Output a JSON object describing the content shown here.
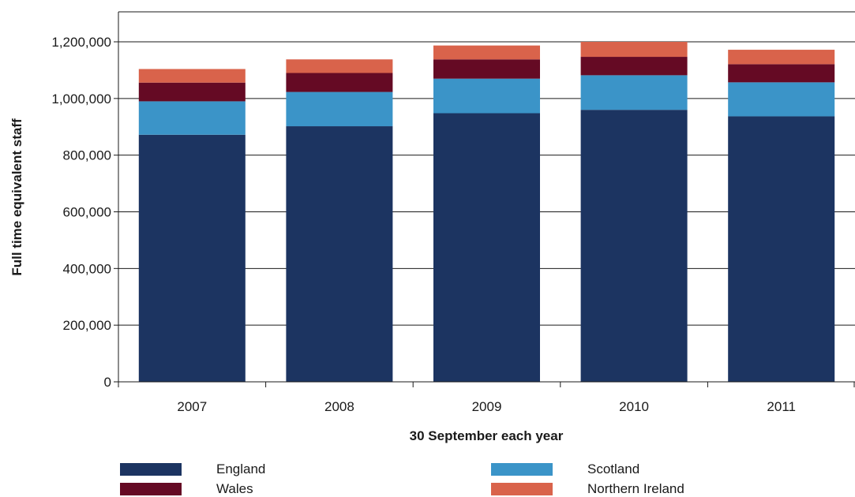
{
  "chart_data": {
    "type": "bar",
    "stacked": true,
    "title": "",
    "xlabel": "30 September each year",
    "ylabel": "Full time equivalent staff",
    "categories": [
      "2007",
      "2008",
      "2009",
      "2010",
      "2011"
    ],
    "ylim": [
      0,
      1200000
    ],
    "yticks": [
      "0",
      "200,000",
      "400,000",
      "600,000",
      "800,000",
      "1,000,000",
      "1,200,000"
    ],
    "ytick_values": [
      0,
      200000,
      400000,
      600000,
      800000,
      1000000,
      1200000
    ],
    "grid": true,
    "legend_position": "bottom",
    "series": [
      {
        "name": "England",
        "color": "#1c3461",
        "values": [
          872000,
          902000,
          948000,
          960000,
          937000
        ]
      },
      {
        "name": "Scotland",
        "color": "#3b94c8",
        "values": [
          118000,
          121000,
          122000,
          122000,
          120000
        ]
      },
      {
        "name": "Wales",
        "color": "#650a24",
        "values": [
          66000,
          67000,
          68000,
          65000,
          64000
        ]
      },
      {
        "name": "Northern Ireland",
        "color": "#d9634b",
        "values": [
          48000,
          48000,
          49000,
          53000,
          51000
        ]
      }
    ]
  }
}
